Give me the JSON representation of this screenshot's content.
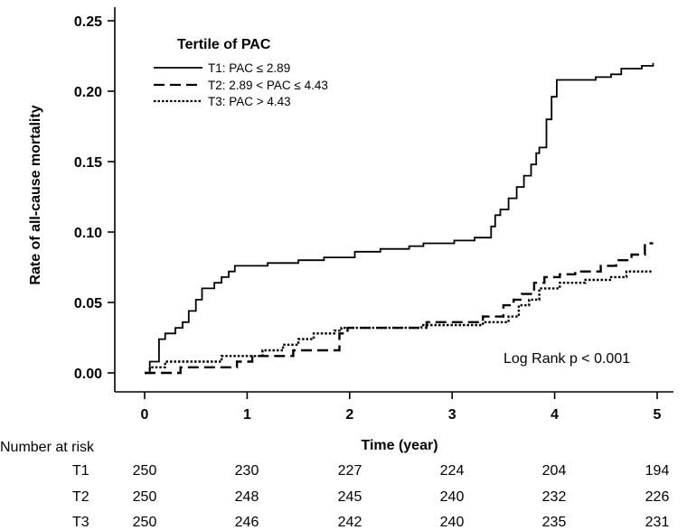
{
  "chart_data": {
    "type": "line",
    "step": true,
    "ylabel": "Rate of all-cause mortality",
    "xlabel": "Time (year)",
    "xlim": [
      0,
      5
    ],
    "ylim": [
      0,
      0.25
    ],
    "x_ticks": [
      "0",
      "1",
      "2",
      "3",
      "4",
      "5"
    ],
    "y_ticks": [
      "0.00",
      "0.05",
      "0.10",
      "0.15",
      "0.20",
      "0.25"
    ],
    "legend": {
      "title": "Tertile of PAC",
      "position": "top-left",
      "entries": [
        "T1: PAC ≤ 2.89",
        "T2: 2.89 < PAC ≤ 4.43",
        "T3: PAC > 4.43"
      ]
    },
    "annotation": "Log Rank p < 0.001",
    "series": [
      {
        "name": "T1: PAC ≤ 2.89",
        "line_style": "solid",
        "x": [
          0,
          0.05,
          0.14,
          0.2,
          0.3,
          0.37,
          0.43,
          0.5,
          0.56,
          0.68,
          0.75,
          0.82,
          0.88,
          0.96,
          1.05,
          1.2,
          1.5,
          1.75,
          2.05,
          2.3,
          2.58,
          2.72,
          3.02,
          3.22,
          3.38,
          3.42,
          3.47,
          3.55,
          3.63,
          3.7,
          3.77,
          3.82,
          3.85,
          3.92,
          3.97,
          4.02,
          4.2,
          4.4,
          4.55,
          4.65,
          4.85,
          4.96
        ],
        "y": [
          0,
          0.008,
          0.024,
          0.028,
          0.032,
          0.036,
          0.044,
          0.052,
          0.06,
          0.064,
          0.068,
          0.072,
          0.076,
          0.076,
          0.076,
          0.078,
          0.08,
          0.082,
          0.086,
          0.088,
          0.09,
          0.092,
          0.094,
          0.096,
          0.104,
          0.112,
          0.116,
          0.124,
          0.132,
          0.14,
          0.148,
          0.156,
          0.16,
          0.18,
          0.196,
          0.208,
          0.208,
          0.21,
          0.212,
          0.216,
          0.218,
          0.22
        ]
      },
      {
        "name": "T2: 2.89 < PAC ≤ 4.43",
        "line_style": "dashed",
        "x": [
          0,
          0.35,
          0.9,
          1.05,
          1.45,
          1.9,
          1.98,
          2.4,
          2.75,
          3.05,
          3.3,
          3.5,
          3.6,
          3.68,
          3.8,
          3.9,
          4.05,
          4.2,
          4.45,
          4.6,
          4.75,
          4.88,
          4.96
        ],
        "y": [
          0,
          0.004,
          0.008,
          0.012,
          0.016,
          0.028,
          0.032,
          0.032,
          0.036,
          0.036,
          0.04,
          0.048,
          0.052,
          0.056,
          0.064,
          0.068,
          0.07,
          0.072,
          0.076,
          0.08,
          0.084,
          0.092,
          0.092
        ]
      },
      {
        "name": "T3: PAC > 4.43",
        "line_style": "dotted",
        "x": [
          0,
          0.05,
          0.2,
          0.75,
          1.15,
          1.35,
          1.5,
          1.65,
          1.85,
          1.92,
          1.96,
          2.45,
          2.7,
          3.3,
          3.55,
          3.65,
          3.75,
          3.85,
          4.05,
          4.3,
          4.55,
          4.7,
          4.96
        ],
        "y": [
          0,
          0.004,
          0.008,
          0.012,
          0.016,
          0.02,
          0.024,
          0.028,
          0.03,
          0.032,
          0.032,
          0.032,
          0.034,
          0.036,
          0.04,
          0.048,
          0.052,
          0.06,
          0.064,
          0.066,
          0.068,
          0.072,
          0.072
        ]
      }
    ]
  },
  "risk_table": {
    "title": "Number at risk",
    "rows": [
      {
        "label": "T1",
        "values": [
          "250",
          "230",
          "227",
          "224",
          "204",
          "194"
        ]
      },
      {
        "label": "T2",
        "values": [
          "250",
          "248",
          "245",
          "240",
          "232",
          "226"
        ]
      },
      {
        "label": "T3",
        "values": [
          "250",
          "246",
          "242",
          "240",
          "235",
          "231"
        ]
      }
    ]
  }
}
